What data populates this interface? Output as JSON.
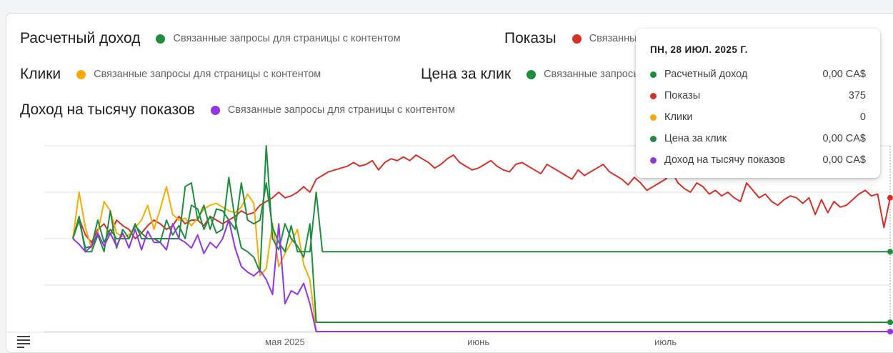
{
  "legend": {
    "revenue": {
      "name": "Расчетный доход",
      "label": "Связанные запросы для страницы с контентом",
      "color": "#1e8e3e"
    },
    "impressions": {
      "name": "Показы",
      "label": "Связанные запросы для страницы с контентом",
      "color": "#d93025"
    },
    "clicks": {
      "name": "Клики",
      "label": "Связанные запросы для страницы с контентом",
      "color": "#f9ab00"
    },
    "cpc": {
      "name": "Цена за клик",
      "label": "Связанные запросы для страницы с контентом",
      "color": "#1e8e3e"
    },
    "rpm": {
      "name": "Доход на тысячу показов",
      "label": "Связанные запросы для страницы с контентом",
      "color": "#9334e6"
    }
  },
  "tooltip": {
    "date": "ПН, 28 ИЮЛ. 2025 Г.",
    "rows": [
      {
        "name": "Расчетный доход",
        "value": "0,00 CA$",
        "color": "#1e8e3e"
      },
      {
        "name": "Показы",
        "value": "375",
        "color": "#d93025"
      },
      {
        "name": "Клики",
        "value": "0",
        "color": "#f9ab00"
      },
      {
        "name": "Цена за клик",
        "value": "0,00 CA$",
        "color": "#1e8e3e"
      },
      {
        "name": "Доход на тысячу показов",
        "value": "0,00 CA$",
        "color": "#9334e6"
      }
    ]
  },
  "chart_data": {
    "type": "line",
    "x_labels": [
      "мая 2025",
      "июнь",
      "июль"
    ],
    "x_label_days": [
      34,
      65,
      95
    ],
    "normalized": true,
    "ylim": [
      0,
      1
    ],
    "grid": true,
    "series": [
      {
        "name": "Показы",
        "color": "#d93025",
        "values": [
          0.5,
          0.61,
          0.52,
          0.48,
          0.55,
          0.58,
          0.52,
          0.6,
          0.57,
          0.55,
          0.5,
          0.53,
          0.57,
          0.6,
          0.58,
          0.55,
          0.57,
          0.62,
          0.58,
          0.6,
          0.6,
          0.57,
          0.62,
          0.6,
          0.58,
          0.6,
          0.62,
          0.65,
          0.63,
          0.64,
          0.68,
          0.7,
          0.72,
          0.75,
          0.72,
          0.73,
          0.75,
          0.78,
          0.75,
          0.82,
          0.84,
          0.86,
          0.87,
          0.88,
          0.89,
          0.91,
          0.89,
          0.9,
          0.92,
          0.87,
          0.91,
          0.93,
          0.92,
          0.94,
          0.92,
          0.95,
          0.93,
          0.91,
          0.88,
          0.9,
          0.93,
          0.95,
          0.91,
          0.89,
          0.87,
          0.88,
          0.9,
          0.92,
          0.89,
          0.87,
          0.86,
          0.9,
          0.91,
          0.89,
          0.87,
          0.85,
          0.9,
          0.88,
          0.86,
          0.84,
          0.82,
          0.87,
          0.84,
          0.86,
          0.88,
          0.9,
          0.86,
          0.84,
          0.82,
          0.79,
          0.83,
          0.8,
          0.76,
          0.78,
          0.8,
          0.82,
          0.86,
          0.8,
          0.77,
          0.75,
          0.8,
          0.78,
          0.74,
          0.76,
          0.73,
          0.75,
          0.72,
          0.7,
          0.8,
          0.76,
          0.72,
          0.74,
          0.7,
          0.68,
          0.71,
          0.73,
          0.72,
          0.69,
          0.72,
          0.63,
          0.71,
          0.64,
          0.7,
          0.67,
          0.68,
          0.71,
          0.74,
          0.76,
          0.73,
          0.74,
          0.56,
          0.72
        ]
      },
      {
        "name": "Клики",
        "color": "#f9ab00",
        "values": [
          0.5,
          0.75,
          0.56,
          0.45,
          0.53,
          0.7,
          0.65,
          0.53,
          0.51,
          0.52,
          0.56,
          0.6,
          0.68,
          0.55,
          0.66,
          0.78,
          0.63,
          0.6,
          0.61,
          0.57,
          0.61,
          0.66,
          0.68,
          0.69,
          0.67,
          0.65,
          0.64,
          0.67,
          0.74,
          0.69,
          0.3,
          0.34,
          0.58,
          0.35,
          0.42,
          0.48,
          0.55,
          0.36,
          0.28,
          0.0,
          0.0,
          0.0,
          0.0,
          0.0,
          0.0,
          0.0,
          0.0,
          0.0,
          0.0,
          0.0,
          0.0,
          0.0,
          0.0,
          0.0,
          0.0,
          0.0,
          0.0,
          0.0,
          0.0,
          0.0,
          0.0,
          0.0,
          0.0,
          0.0,
          0.0,
          0.0,
          0.0,
          0.0,
          0.0,
          0.0,
          0.0,
          0.0,
          0.0,
          0.0,
          0.0,
          0.0,
          0.0,
          0.0,
          0.0,
          0.0,
          0.0,
          0.0,
          0.0,
          0.0,
          0.0,
          0.0,
          0.0,
          0.0,
          0.0,
          0.0,
          0.0,
          0.0,
          0.0,
          0.0,
          0.0,
          0.0,
          0.0,
          0.0,
          0.0,
          0.0,
          0.0,
          0.0,
          0.0,
          0.0,
          0.0,
          0.0,
          0.0,
          0.0,
          0.0,
          0.0,
          0.0,
          0.0,
          0.0,
          0.0,
          0.0,
          0.0,
          0.0,
          0.0,
          0.0,
          0.0,
          0.0,
          0.0,
          0.0,
          0.0,
          0.0,
          0.0,
          0.0,
          0.0,
          0.0,
          0.0,
          0.0,
          0.0
        ]
      },
      {
        "name": "Цена за клик",
        "color": "#1e8e3e",
        "values": [
          0.5,
          0.62,
          0.43,
          0.43,
          0.52,
          0.43,
          0.65,
          0.45,
          0.55,
          0.5,
          0.58,
          0.5,
          0.5,
          0.5,
          0.5,
          0.5,
          0.5,
          0.5,
          0.78,
          0.8,
          0.6,
          0.68,
          0.55,
          0.66,
          0.65,
          0.6,
          0.55,
          0.8,
          0.6,
          0.58,
          0.6,
          0.8,
          0.56,
          0.48,
          0.43,
          0.57,
          0.43,
          0.43,
          0.43,
          0.75,
          0.43,
          0.43,
          0.43,
          0.43,
          0.43,
          0.43,
          0.43,
          0.43,
          0.43,
          0.43,
          0.43,
          0.43,
          0.43,
          0.43,
          0.43,
          0.43,
          0.43,
          0.43,
          0.43,
          0.43,
          0.43,
          0.43,
          0.43,
          0.43,
          0.43,
          0.43,
          0.43,
          0.43,
          0.43,
          0.43,
          0.43,
          0.43,
          0.43,
          0.43,
          0.43,
          0.43,
          0.43,
          0.43,
          0.43,
          0.43,
          0.43,
          0.43,
          0.43,
          0.43,
          0.43,
          0.43,
          0.43,
          0.43,
          0.43,
          0.43,
          0.43,
          0.43,
          0.43,
          0.43,
          0.43,
          0.43,
          0.43,
          0.43,
          0.43,
          0.43,
          0.43,
          0.43,
          0.43,
          0.43,
          0.43,
          0.43,
          0.43,
          0.43,
          0.43,
          0.43,
          0.43,
          0.43,
          0.43,
          0.43,
          0.43,
          0.43,
          0.43,
          0.43,
          0.43,
          0.43,
          0.43,
          0.43,
          0.43,
          0.43,
          0.43,
          0.43,
          0.43,
          0.43,
          0.43,
          0.43,
          0.43,
          0.43
        ]
      },
      {
        "name": "Расчетный доход",
        "color": "#1e8e3e",
        "values": [
          0.5,
          0.6,
          0.45,
          0.46,
          0.6,
          0.48,
          0.55,
          0.5,
          0.5,
          0.5,
          0.57,
          0.53,
          0.5,
          0.5,
          0.48,
          0.6,
          0.52,
          0.57,
          0.5,
          0.68,
          0.66,
          0.55,
          0.62,
          0.53,
          0.55,
          0.83,
          0.6,
          0.45,
          0.43,
          0.4,
          0.32,
          1.0,
          0.5,
          0.44,
          0.58,
          0.5,
          0.46,
          0.4,
          0.58,
          0.05,
          0.05,
          0.05,
          0.05,
          0.05,
          0.05,
          0.05,
          0.05,
          0.05,
          0.05,
          0.05,
          0.05,
          0.05,
          0.05,
          0.05,
          0.05,
          0.05,
          0.05,
          0.05,
          0.05,
          0.05,
          0.05,
          0.05,
          0.05,
          0.05,
          0.05,
          0.05,
          0.05,
          0.05,
          0.05,
          0.05,
          0.05,
          0.05,
          0.05,
          0.05,
          0.05,
          0.05,
          0.05,
          0.05,
          0.05,
          0.05,
          0.05,
          0.05,
          0.05,
          0.05,
          0.05,
          0.05,
          0.05,
          0.05,
          0.05,
          0.05,
          0.05,
          0.05,
          0.05,
          0.05,
          0.05,
          0.05,
          0.05,
          0.05,
          0.05,
          0.05,
          0.05,
          0.05,
          0.05,
          0.05,
          0.05,
          0.05,
          0.05,
          0.05,
          0.05,
          0.05,
          0.05,
          0.05,
          0.05,
          0.05,
          0.05,
          0.05,
          0.05,
          0.05,
          0.05,
          0.05,
          0.05,
          0.05,
          0.05,
          0.05,
          0.05,
          0.05,
          0.05,
          0.05,
          0.05,
          0.05,
          0.05,
          0.05
        ]
      },
      {
        "name": "Доход на тысячу показов",
        "color": "#9334e6",
        "values": [
          0.5,
          0.47,
          0.43,
          0.46,
          0.53,
          0.46,
          0.53,
          0.46,
          0.53,
          0.45,
          0.55,
          0.44,
          0.54,
          0.48,
          0.48,
          0.44,
          0.58,
          0.5,
          0.48,
          0.45,
          0.52,
          0.42,
          0.48,
          0.45,
          0.5,
          0.6,
          0.45,
          0.35,
          0.32,
          0.3,
          0.33,
          0.28,
          0.2,
          0.58,
          0.15,
          0.22,
          0.2,
          0.26,
          0.15,
          0.0,
          0.0,
          0.0,
          0.0,
          0.0,
          0.0,
          0.0,
          0.0,
          0.0,
          0.0,
          0.0,
          0.0,
          0.0,
          0.0,
          0.0,
          0.0,
          0.0,
          0.0,
          0.0,
          0.0,
          0.0,
          0.0,
          0.0,
          0.0,
          0.0,
          0.0,
          0.0,
          0.0,
          0.0,
          0.0,
          0.0,
          0.0,
          0.0,
          0.0,
          0.0,
          0.0,
          0.0,
          0.0,
          0.0,
          0.0,
          0.0,
          0.0,
          0.0,
          0.0,
          0.0,
          0.0,
          0.0,
          0.0,
          0.0,
          0.0,
          0.0,
          0.0,
          0.0,
          0.0,
          0.0,
          0.0,
          0.0,
          0.0,
          0.0,
          0.0,
          0.0,
          0.0,
          0.0,
          0.0,
          0.0,
          0.0,
          0.0,
          0.0,
          0.0,
          0.0,
          0.0,
          0.0,
          0.0,
          0.0,
          0.0,
          0.0,
          0.0,
          0.0,
          0.0,
          0.0,
          0.0,
          0.0,
          0.0,
          0.0,
          0.0,
          0.0,
          0.0,
          0.0,
          0.0,
          0.0,
          0.0,
          0.0,
          0.0,
          0.0
        ]
      }
    ]
  }
}
